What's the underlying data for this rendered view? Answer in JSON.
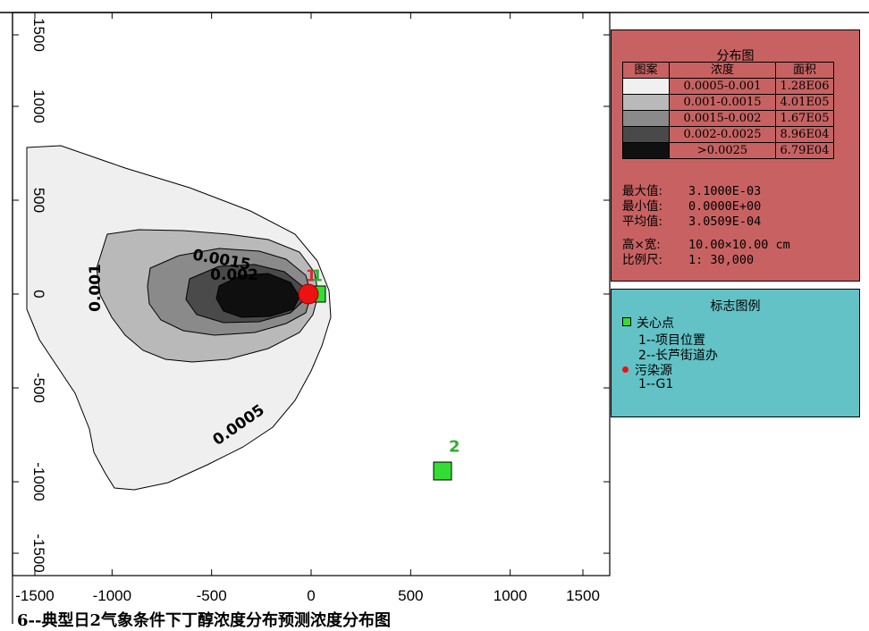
{
  "caption": "6--典型日2气象条件下丁醇浓度分布预测浓度分布图",
  "chart_data": {
    "type": "contour",
    "xlim": [
      -1500,
      1500
    ],
    "ylim": [
      -1500,
      1500
    ],
    "x_ticks": [
      "-1500",
      "-1000",
      "-500",
      "0",
      "500",
      "1000",
      "1500"
    ],
    "y_ticks": [
      "1500",
      "1000",
      "500",
      "0",
      "-500",
      "-1000",
      "-1500"
    ],
    "contour_labels": [
      {
        "text": "0.001"
      },
      {
        "text": "0.0015"
      },
      {
        "text": "0.002"
      },
      {
        "text": "0.0005"
      }
    ],
    "point_labels": [
      {
        "text": "1",
        "x": 0,
        "y": 50,
        "color": "#d03030"
      },
      {
        "text": "1",
        "x": 30,
        "y": 50,
        "color": "#2fb02f"
      },
      {
        "text": "2",
        "x": 720,
        "y": -860,
        "color": "#2fb02f"
      }
    ]
  },
  "legend": {
    "title": "分布图",
    "col_pattern": "图案",
    "col_conc": "浓度",
    "col_area": "面积",
    "rows": [
      {
        "range": "0.0005-0.001",
        "area": "1.28E06",
        "color": "#f0f0f0"
      },
      {
        "range": "0.001-0.0015",
        "area": "4.01E05",
        "color": "#b9b9b9"
      },
      {
        "range": "0.0015-0.002",
        "area": "1.67E05",
        "color": "#8a8a8a"
      },
      {
        "range": "0.002-0.0025",
        "area": "8.96E04",
        "color": "#494949"
      },
      {
        "range": ">0.0025",
        "area": "6.79E04",
        "color": "#101010"
      }
    ],
    "stats": {
      "max_label": "最大值:",
      "max_value": "3.1000E-03",
      "min_label": "最小值:",
      "min_value": "0.0000E+00",
      "avg_label": "平均值:",
      "avg_value": "3.0509E-04",
      "size_label": "高×宽:",
      "size_value": "10.00×10.00 cm",
      "scale_label": "比例尺:",
      "scale_value": "1: 30,000"
    }
  },
  "markers": {
    "title": "标志图例",
    "concern_label": "关心点",
    "concern_items": [
      "1--项目位置",
      "2--长芦街道办"
    ],
    "source_label": "污染源",
    "source_items": [
      "1--G1"
    ],
    "concern_color": "#33dd33",
    "source_color": "#ee1111"
  }
}
